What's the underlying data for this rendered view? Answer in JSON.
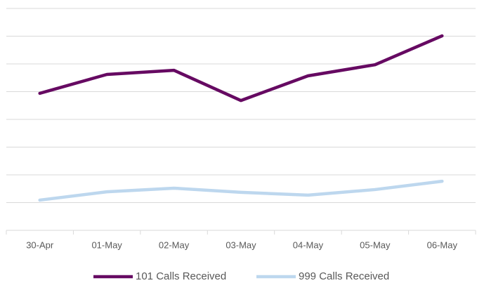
{
  "chart_data": {
    "type": "line",
    "categories": [
      "30-Apr",
      "01-May",
      "02-May",
      "03-May",
      "04-May",
      "05-May",
      "06-May"
    ],
    "series": [
      {
        "name": "101 Calls Received",
        "color": "#660a62",
        "values": [
          4.94,
          5.62,
          5.77,
          4.68,
          5.57,
          5.97,
          7.01
        ]
      },
      {
        "name": "999 Calls Received",
        "color": "#bdd7ee",
        "values": [
          1.09,
          1.39,
          1.52,
          1.37,
          1.27,
          1.47,
          1.77
        ]
      }
    ],
    "ylim": [
      0,
      8
    ],
    "yticks": [
      0,
      1,
      2,
      3,
      4,
      5,
      6,
      7,
      8
    ],
    "grid": true,
    "legend": "bottom"
  }
}
